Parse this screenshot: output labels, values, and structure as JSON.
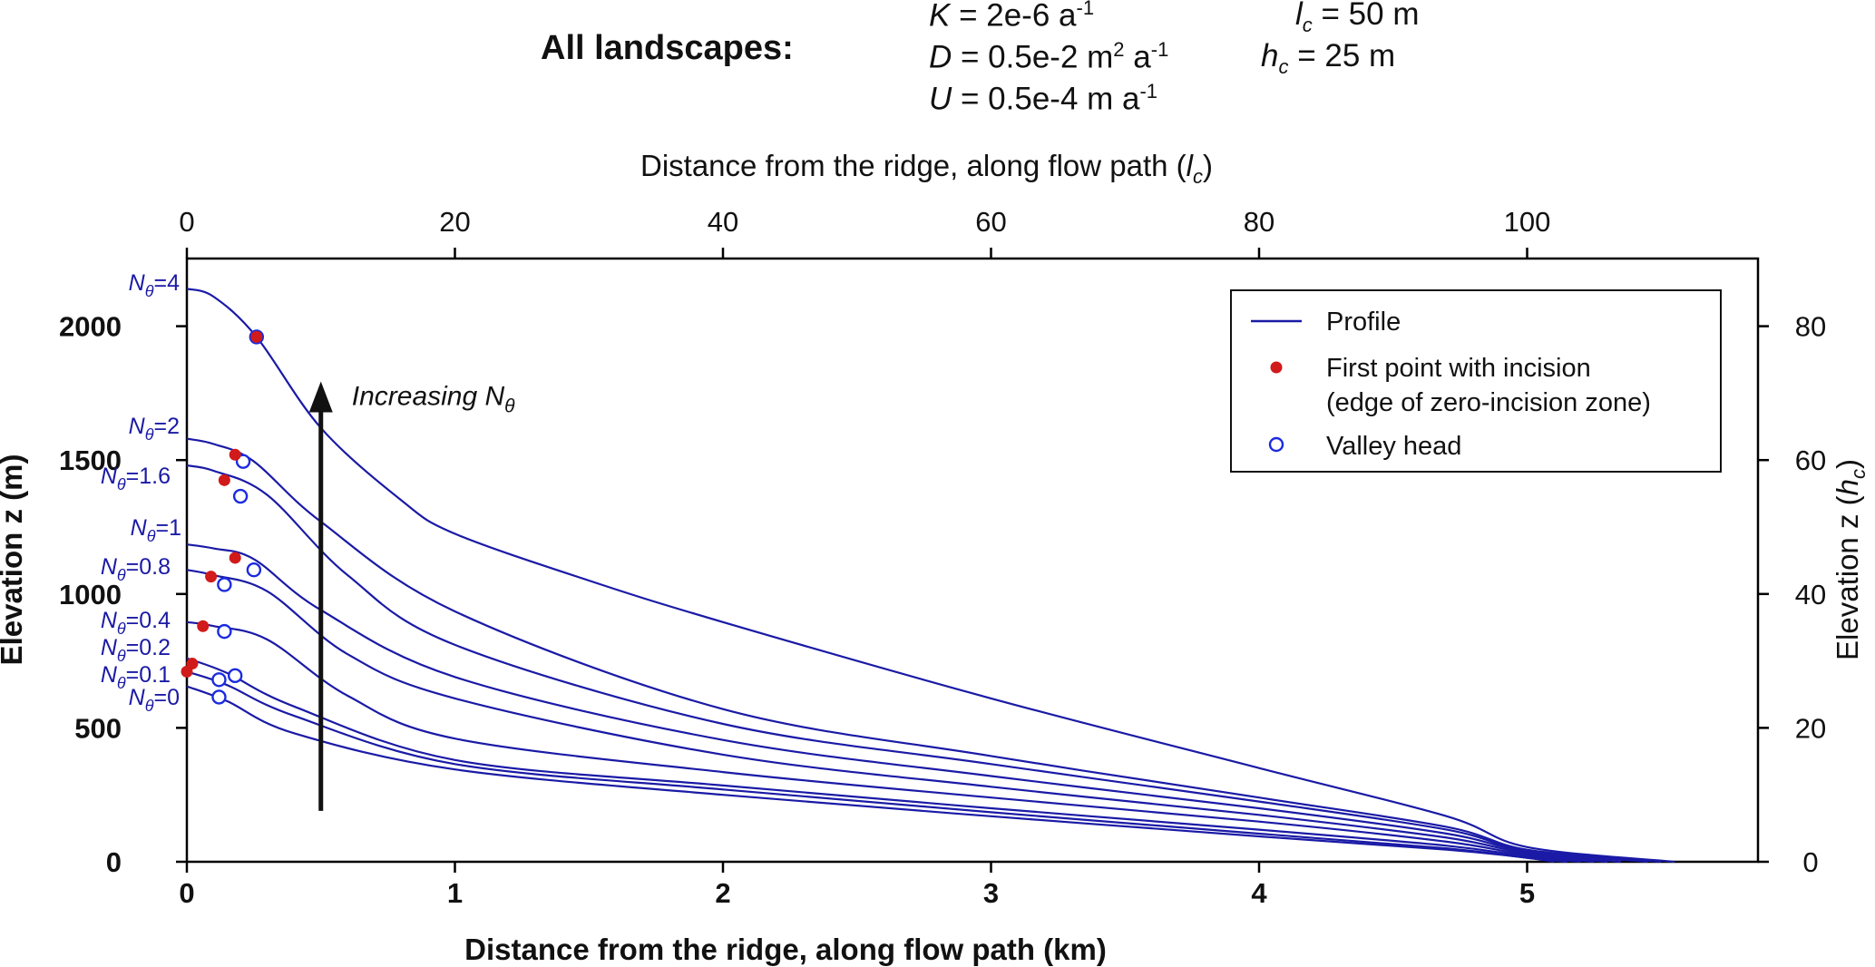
{
  "header": {
    "title": "All landscapes:",
    "params": [
      {
        "sym": "K",
        "text": " = 2e-6 a",
        "sup": "-1",
        "sub": ""
      },
      {
        "sym": "D",
        "text": " = 0.5e-2 m",
        "sup": "2",
        "rest": " a",
        "sup2": "-1"
      },
      {
        "sym": "U",
        "text": " = 0.5e-4 m a",
        "sup": "-1"
      },
      {
        "sym": "l",
        "sub": "c",
        "text": " = 50 m"
      },
      {
        "sym": "h",
        "sub": "c",
        "text": " = 25 m"
      }
    ]
  },
  "chart_data": {
    "type": "line",
    "xlabel": "Distance from the ridge, along flow path   (km)",
    "ylabel": "Elevation   z (m)",
    "x2label": "Distance from the ridge, along flow path   (",
    "x2label_sym": "l",
    "x2label_sub": "c",
    "y2label": "Elevation   z (",
    "y2label_sym": "h",
    "y2label_sub": "c",
    "xlim": [
      0,
      5.9
    ],
    "ylim": [
      0,
      2250
    ],
    "x_ticks": [
      0,
      1,
      2,
      3,
      4,
      5
    ],
    "y_ticks": [
      0,
      500,
      1000,
      1500,
      2000
    ],
    "x2_ticks": [
      0,
      20,
      40,
      60,
      80,
      100
    ],
    "y2_ticks": [
      0,
      20,
      40,
      60,
      80
    ],
    "x2_scale_km_per_unit": 0.05,
    "y2_scale_m_per_unit": 25,
    "annotation": {
      "text": "Increasing N",
      "sub": "θ",
      "x_km": 0.5,
      "y_from": 190,
      "y_to": 1780
    },
    "legend": {
      "placement": "top-right",
      "items": [
        {
          "kind": "line",
          "label": "Profile"
        },
        {
          "kind": "dot",
          "label": "First point with incision",
          "label2": "(edge of zero-incision zone)"
        },
        {
          "kind": "ring",
          "label": "Valley head"
        }
      ]
    },
    "colors": {
      "profile": "#1a1aa6",
      "incision": "#d11a1a",
      "valley": "#1a2be0",
      "axis": "#000000"
    },
    "series": [
      {
        "name": "Nθ=0",
        "label_prefix": "N",
        "label_sub": "θ",
        "label_val": "=0",
        "x": [
          0,
          0.15,
          0.4,
          1.0,
          2.0,
          3.0,
          4.0,
          4.7,
          5.0,
          5.1
        ],
        "y": [
          655,
          600,
          480,
          345,
          250,
          170,
          95,
          45,
          15,
          0
        ],
        "incision": null,
        "valley": [
          0.12,
          615
        ]
      },
      {
        "name": "Nθ=0.1",
        "label_prefix": "N",
        "label_sub": "θ",
        "label_val": "=0.1",
        "x": [
          0,
          0.15,
          0.4,
          1.0,
          2.0,
          3.0,
          4.0,
          4.7,
          5.0,
          5.15
        ],
        "y": [
          710,
          660,
          545,
          365,
          270,
          185,
          105,
          50,
          15,
          0
        ],
        "incision": [
          0.0,
          710
        ],
        "valley": [
          0.12,
          680
        ]
      },
      {
        "name": "Nθ=0.2",
        "label_prefix": "N",
        "label_sub": "θ",
        "label_val": "=0.2",
        "x": [
          0,
          0.15,
          0.4,
          1.0,
          2.0,
          3.0,
          4.0,
          4.7,
          5.0,
          5.2
        ],
        "y": [
          760,
          705,
          580,
          380,
          285,
          200,
          120,
          60,
          20,
          0
        ],
        "incision": [
          0.02,
          740
        ],
        "valley": [
          0.18,
          695
        ]
      },
      {
        "name": "Nθ=0.4",
        "label_prefix": "N",
        "label_sub": "θ",
        "label_val": "=0.4",
        "x": [
          0,
          0.1,
          0.3,
          0.6,
          1.0,
          2.0,
          3.0,
          4.0,
          4.7,
          5.0,
          5.25
        ],
        "y": [
          895,
          880,
          830,
          620,
          460,
          335,
          240,
          150,
          75,
          25,
          0
        ],
        "incision": [
          0.06,
          880
        ],
        "valley": [
          0.14,
          860
        ]
      },
      {
        "name": "Nθ=0.8",
        "label_prefix": "N",
        "label_sub": "θ",
        "label_val": "=0.8",
        "x": [
          0,
          0.1,
          0.3,
          0.6,
          1.0,
          2.0,
          3.0,
          4.0,
          4.7,
          5.0,
          5.3
        ],
        "y": [
          1090,
          1070,
          1010,
          775,
          610,
          400,
          280,
          175,
          90,
          30,
          0
        ],
        "incision": [
          0.09,
          1065
        ],
        "valley": [
          0.14,
          1035
        ]
      },
      {
        "name": "Nθ=1",
        "label_prefix": "N",
        "label_sub": "θ",
        "label_val": "=1",
        "x": [
          0,
          0.1,
          0.25,
          0.5,
          1.0,
          2.0,
          3.0,
          4.0,
          4.7,
          5.0,
          5.35
        ],
        "y": [
          1185,
          1170,
          1130,
          940,
          690,
          455,
          320,
          200,
          105,
          35,
          0
        ],
        "incision": [
          0.18,
          1135
        ],
        "valley": [
          0.25,
          1090
        ]
      },
      {
        "name": "Nθ=1.6",
        "label_prefix": "N",
        "label_sub": "θ",
        "label_val": "=1.6",
        "x": [
          0,
          0.1,
          0.3,
          0.6,
          1.0,
          2.0,
          3.0,
          4.0,
          4.7,
          5.0,
          5.45
        ],
        "y": [
          1480,
          1460,
          1370,
          1070,
          810,
          515,
          365,
          225,
          120,
          40,
          0
        ],
        "incision": [
          0.14,
          1425
        ],
        "valley": [
          0.2,
          1365
        ]
      },
      {
        "name": "Nθ=2",
        "label_prefix": "N",
        "label_sub": "θ",
        "label_val": "=2",
        "x": [
          0,
          0.1,
          0.25,
          0.5,
          1.0,
          2.0,
          3.0,
          4.0,
          4.7,
          5.0,
          5.5
        ],
        "y": [
          1580,
          1560,
          1495,
          1270,
          935,
          570,
          395,
          240,
          130,
          45,
          0
        ],
        "incision": [
          0.18,
          1520
        ],
        "valley": [
          0.21,
          1495
        ]
      },
      {
        "name": "Nθ=4",
        "label_prefix": "N",
        "label_sub": "θ",
        "label_val": "=4",
        "x": [
          0,
          0.1,
          0.26,
          0.5,
          0.8,
          1.0,
          1.5,
          2.0,
          3.0,
          4.0,
          4.7,
          5.0,
          5.55
        ],
        "y": [
          2140,
          2110,
          1960,
          1620,
          1350,
          1225,
          1050,
          895,
          610,
          350,
          170,
          55,
          0
        ],
        "incision": [
          0.26,
          1960
        ],
        "valley": [
          0.26,
          1960
        ]
      }
    ]
  }
}
